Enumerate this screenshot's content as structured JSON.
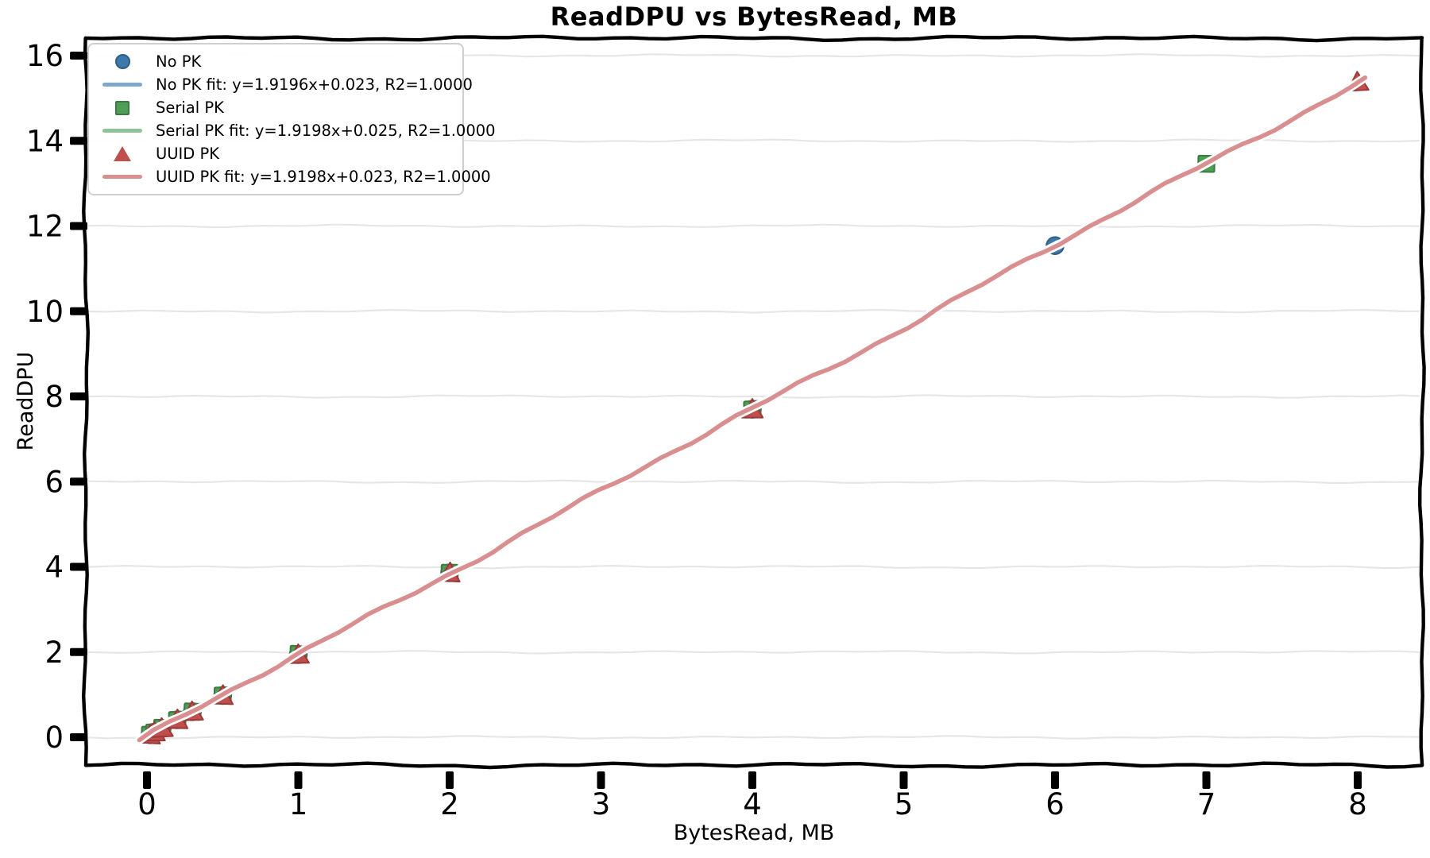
{
  "chart_data": {
    "type": "scatter",
    "title": "ReadDPU vs BytesRead, MB",
    "xlabel": "BytesRead, MB",
    "ylabel": "ReadDPU",
    "xlim": [
      -0.4,
      8.43
    ],
    "ylim": [
      -0.65,
      16.42
    ],
    "xticks": [
      0,
      1,
      2,
      3,
      4,
      5,
      6,
      7,
      8
    ],
    "yticks": [
      0,
      2,
      4,
      6,
      8,
      10,
      12,
      14,
      16
    ],
    "grid": "horizontal-light",
    "style": "xkcd-handdrawn",
    "series": [
      {
        "name": "No PK",
        "marker": "circle",
        "color": "#3d7aab",
        "edge_color": "#2d5f88",
        "points": [
          [
            0.02,
            0.06
          ],
          [
            0.05,
            0.12
          ],
          [
            0.1,
            0.21
          ],
          [
            0.2,
            0.41
          ],
          [
            0.3,
            0.6
          ],
          [
            0.5,
            0.98
          ],
          [
            1,
            1.94
          ],
          [
            2,
            3.86
          ],
          [
            4,
            7.7
          ],
          [
            6,
            11.54
          ]
        ]
      },
      {
        "name": "Serial PK",
        "marker": "square",
        "color": "#4f9e55",
        "edge_color": "#3b7a42",
        "points": [
          [
            0.02,
            0.06
          ],
          [
            0.05,
            0.12
          ],
          [
            0.1,
            0.22
          ],
          [
            0.2,
            0.41
          ],
          [
            0.3,
            0.6
          ],
          [
            0.5,
            0.98
          ],
          [
            1,
            1.95
          ],
          [
            2,
            3.86
          ],
          [
            4,
            7.7
          ],
          [
            7,
            13.46
          ]
        ]
      },
      {
        "name": "UUID PK",
        "marker": "triangle",
        "color": "#bf4f4d",
        "edge_color": "#9a3a38",
        "points": [
          [
            0.02,
            0.06
          ],
          [
            0.05,
            0.12
          ],
          [
            0.1,
            0.21
          ],
          [
            0.2,
            0.41
          ],
          [
            0.3,
            0.6
          ],
          [
            0.5,
            0.98
          ],
          [
            1,
            1.94
          ],
          [
            2,
            3.86
          ],
          [
            4,
            7.7
          ],
          [
            8,
            15.38
          ]
        ]
      }
    ],
    "fits": [
      {
        "name": "No PK fit",
        "equation": "y=1.9196x+0.023",
        "slope": 1.9196,
        "intercept": 0.023,
        "r2": "1.0000",
        "color": "#7fa8cd",
        "x_range": [
          -0.05,
          6.02
        ]
      },
      {
        "name": "Serial PK fit",
        "equation": "y=1.9198x+0.025",
        "slope": 1.9198,
        "intercept": 0.025,
        "r2": "1.0000",
        "color": "#8fc497",
        "x_range": [
          -0.05,
          7.04
        ]
      },
      {
        "name": "UUID PK fit",
        "equation": "y=1.9198x+0.023",
        "slope": 1.9198,
        "intercept": 0.023,
        "r2": "1.0000",
        "color": "#d98f8f",
        "x_range": [
          -0.05,
          8.05
        ]
      }
    ],
    "legend": {
      "position": "upper-left",
      "entries": [
        "No PK",
        "No PK fit: y=1.9196x+0.023, R2=1.0000",
        "Serial PK",
        "Serial PK fit: y=1.9198x+0.025, R2=1.0000",
        "UUID PK",
        "UUID PK fit: y=1.9198x+0.023, R2=1.0000"
      ]
    }
  }
}
